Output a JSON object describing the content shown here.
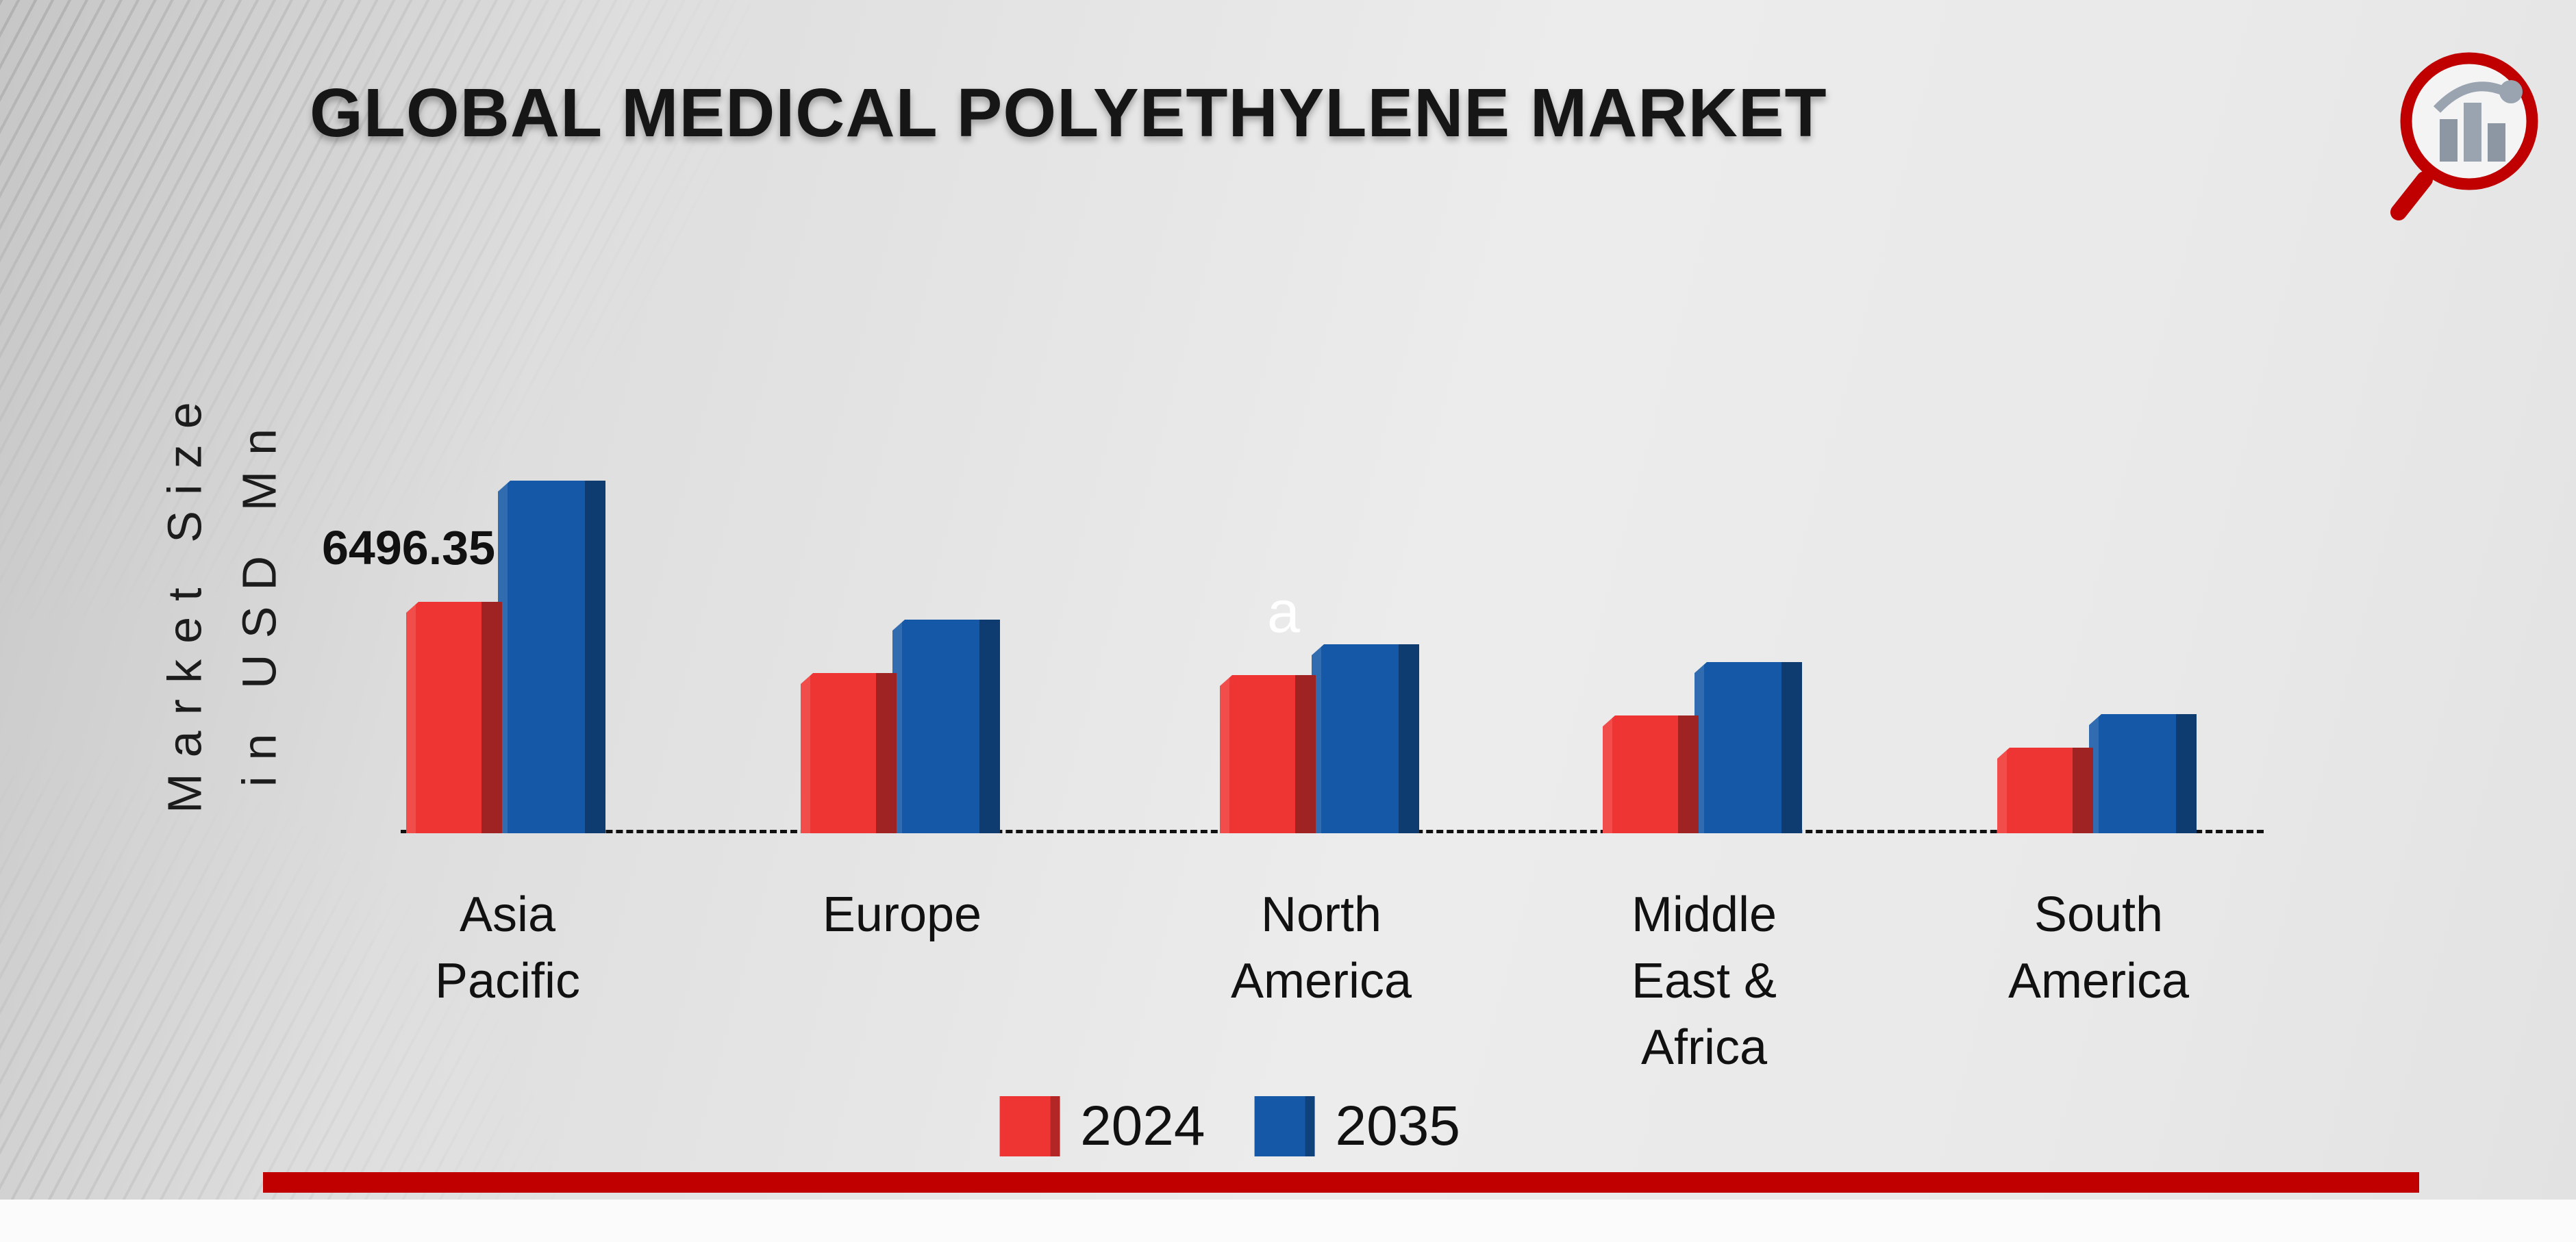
{
  "page": {
    "title": "GLOBAL MEDICAL POLYETHYLENE MARKET"
  },
  "icons": {
    "logo": "magnifier-bar-chart-logo"
  },
  "axis": {
    "ylabel_line1": "Market Size",
    "ylabel_line2": "in USD Mn"
  },
  "annotations": {
    "bar_label": "6496.35",
    "stray_letter": "a"
  },
  "legend": {
    "items": [
      {
        "label": "2024",
        "color": "#EE3533"
      },
      {
        "label": "2035",
        "color": "#1558A7"
      }
    ]
  },
  "colors": {
    "accent_red": "#C00000",
    "series_2024": "#EE3533",
    "series_2035": "#1558A7"
  },
  "chart_data": {
    "type": "bar",
    "title": "GLOBAL MEDICAL POLYETHYLENE MARKET",
    "xlabel": "",
    "ylabel": "Market Size in USD Mn",
    "categories": [
      "Asia Pacific",
      "Europe",
      "North America",
      "Middle East & Africa",
      "South America"
    ],
    "series": [
      {
        "name": "2024",
        "color": "#EE3533",
        "values": [
          6496.35,
          4500,
          4450,
          3300,
          2400
        ]
      },
      {
        "name": "2035",
        "color": "#1558A7",
        "values": [
          9900,
          6000,
          5300,
          4800,
          3350
        ]
      }
    ],
    "data_labels": [
      {
        "series": "2024",
        "category": "Asia Pacific",
        "text": "6496.35"
      }
    ],
    "ylim": [
      0,
      10000
    ],
    "grid": false,
    "legend_position": "bottom",
    "baseline_style": "dashed"
  }
}
